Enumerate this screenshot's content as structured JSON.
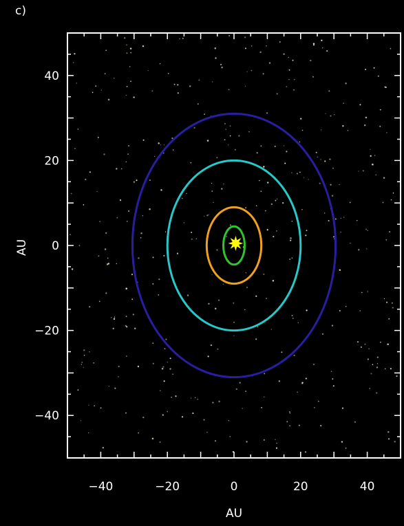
{
  "panel_label": "c)",
  "chart_data": {
    "type": "scatter",
    "title": "",
    "xlabel": "AU",
    "ylabel": "AU",
    "xlim": [
      -50,
      50
    ],
    "ylim": [
      -50,
      50
    ],
    "x_ticks": [
      -40,
      -20,
      0,
      20,
      40
    ],
    "y_ticks": [
      -40,
      -20,
      0,
      20,
      40
    ],
    "x_tick_labels": [
      "−40",
      "−20",
      "0",
      "20",
      "40"
    ],
    "y_tick_labels": [
      "−40",
      "−20",
      "0",
      "20",
      "40"
    ],
    "grid": false,
    "background": "#000000",
    "axis_color": "#ffffff",
    "orbits": [
      {
        "semi_major_x": 3.2,
        "semi_minor_y": 4.5,
        "color": "#2ec52e"
      },
      {
        "semi_major_x": 8.2,
        "semi_minor_y": 9.0,
        "color": "#f0a020"
      },
      {
        "semi_major_x": 20.0,
        "semi_minor_y": 20.0,
        "color": "#28c8c8"
      },
      {
        "semi_major_x": 30.5,
        "semi_minor_y": 31.0,
        "color": "#2a1ea0"
      }
    ],
    "sun": {
      "x": 0.5,
      "y": 0.5,
      "color": "#ffff00"
    },
    "star_field": {
      "color": "#e8e0c0",
      "count": 420
    }
  }
}
